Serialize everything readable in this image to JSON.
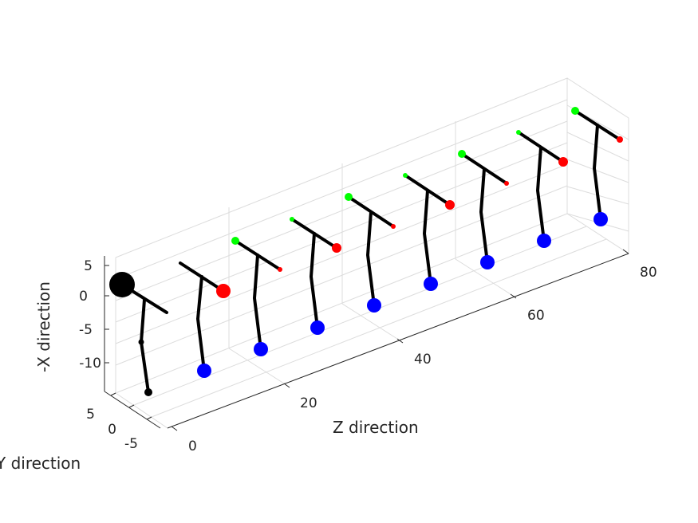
{
  "chart_data": {
    "type": "3d-line-scatter",
    "axes": {
      "z": {
        "label": "Z direction",
        "ticks": [
          "0",
          "20",
          "40",
          "60",
          "80"
        ],
        "range": [
          0,
          80
        ]
      },
      "negx": {
        "label": "-X direction",
        "ticks": [
          "5",
          "0",
          "-5",
          "-10"
        ],
        "range": [
          -14,
          7
        ]
      },
      "y": {
        "label": "Y direction",
        "ticks": [
          "5",
          "0",
          "-5"
        ],
        "range": [
          -7,
          7
        ]
      }
    },
    "grid": true,
    "colors": {
      "hip": "#00ff00",
      "shoulder": "#ff0000",
      "foot": "#0000ff",
      "first_frame": "#000000",
      "bone": "#000000",
      "grid": "#dcdcdc",
      "axis": "#262626"
    },
    "frames": [
      {
        "z": 0,
        "markers": [
          "black-large",
          "black-small",
          "black-small"
        ]
      },
      {
        "z": 10,
        "markers": [
          "red",
          "blue"
        ]
      },
      {
        "z": 20,
        "markers": [
          "green",
          "red",
          "blue"
        ]
      },
      {
        "z": 30,
        "markers": [
          "green",
          "red",
          "blue"
        ]
      },
      {
        "z": 40,
        "markers": [
          "green",
          "red",
          "blue"
        ]
      },
      {
        "z": 50,
        "markers": [
          "green",
          "red",
          "blue"
        ]
      },
      {
        "z": 60,
        "markers": [
          "green",
          "red",
          "blue"
        ]
      },
      {
        "z": 70,
        "markers": [
          "green",
          "red",
          "blue"
        ]
      },
      {
        "z": 80,
        "markers": [
          "green",
          "red",
          "blue"
        ]
      }
    ]
  }
}
